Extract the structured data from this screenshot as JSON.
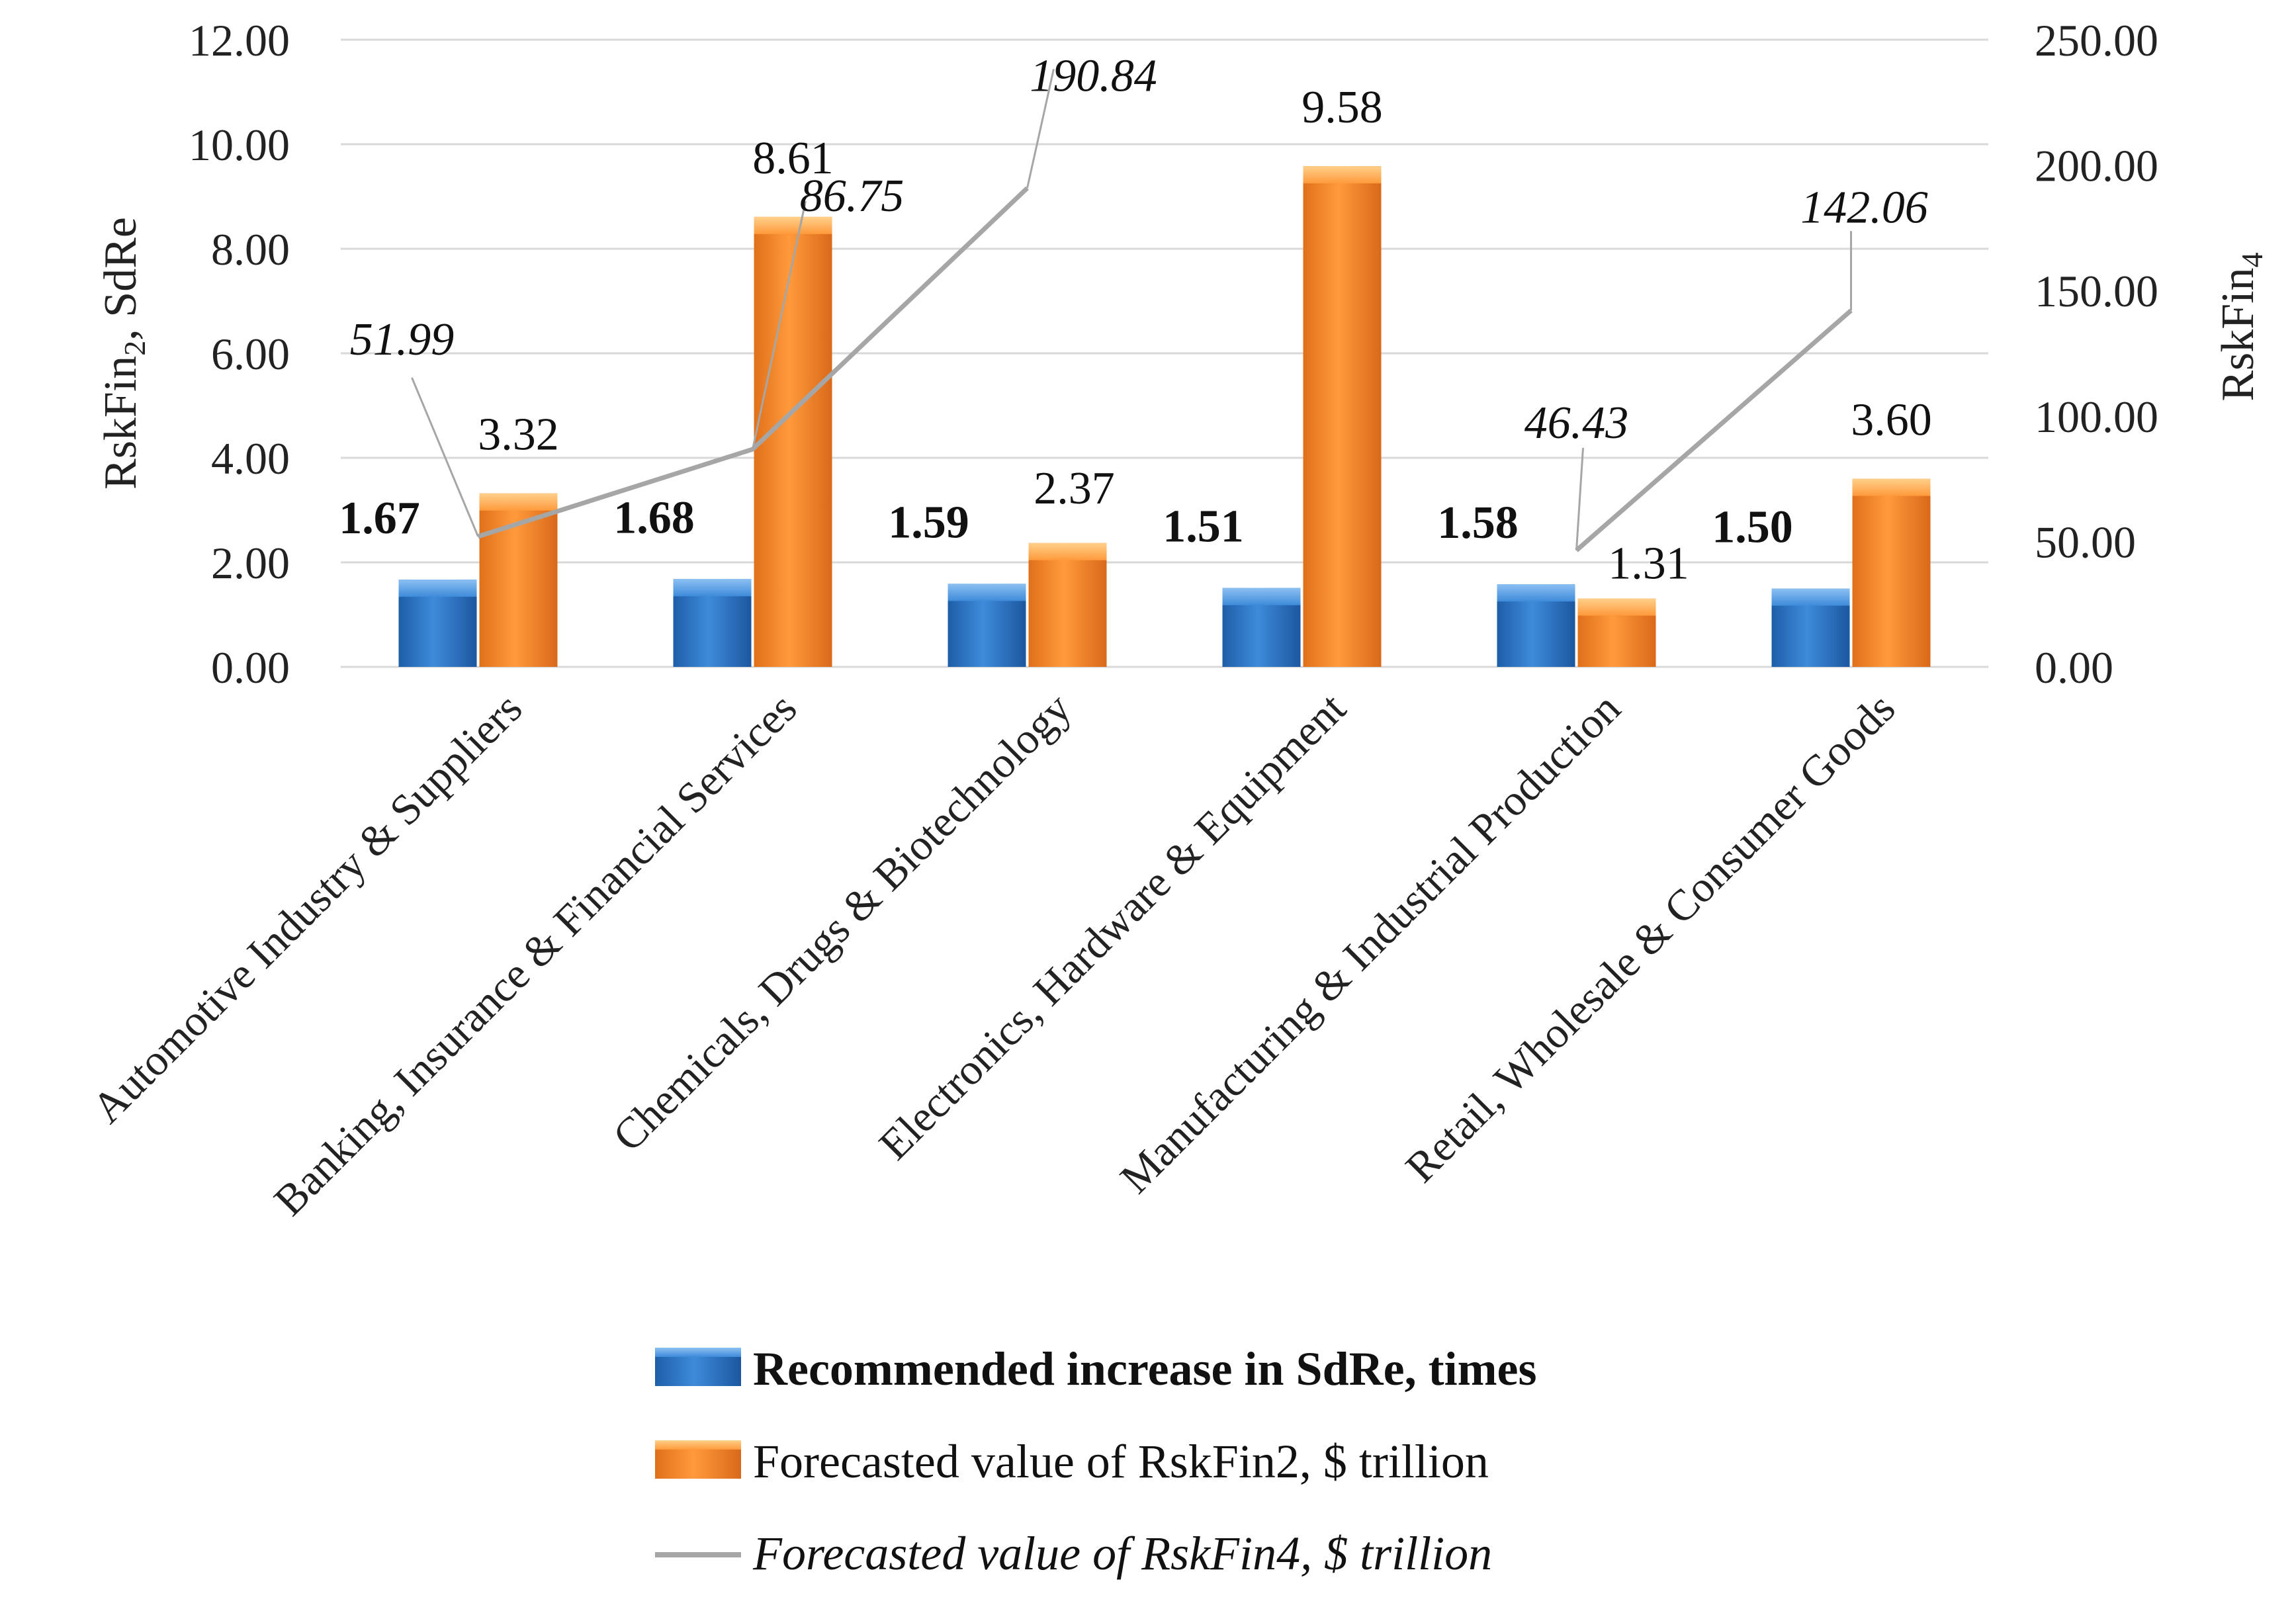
{
  "chart_data": {
    "type": "bar",
    "categories": [
      "Automotive Industry & Suppliers",
      "Banking, Insurance & Financial Services",
      "Chemicals, Drugs & Biotechnology",
      "Electronics, Hardware & Equipment",
      "Manufacturing & Industrial Production",
      "Retail, Wholesale & Consumer Goods"
    ],
    "series": [
      {
        "name": "Recommended increase in SdRe, times",
        "kind": "bar",
        "axis": "left",
        "color": "#2E75C8",
        "values": [
          1.67,
          1.68,
          1.59,
          1.51,
          1.58,
          1.5
        ],
        "labels": [
          "1.67",
          "1.68",
          "1.59",
          "1.51",
          "1.58",
          "1.50"
        ]
      },
      {
        "name": "Forecasted value of RskFin2, $ trillion",
        "kind": "bar",
        "axis": "left",
        "color": "#F28A2E",
        "values": [
          3.32,
          8.61,
          2.37,
          9.58,
          1.31,
          3.6
        ],
        "labels": [
          "3.32",
          "8.61",
          "2.37",
          "9.58",
          "1.31",
          "3.60"
        ]
      },
      {
        "name": "Forecasted value of RskFin4, $ trillion",
        "kind": "line",
        "axis": "right",
        "color": "#A6A6A6",
        "segments": [
          [
            0,
            1,
            2
          ],
          [
            4,
            5
          ]
        ],
        "points": [
          {
            "cat": 0,
            "value": 51.99,
            "label": "51.99"
          },
          {
            "cat": 1,
            "value": 86.75,
            "label": "86.75"
          },
          {
            "cat": 2,
            "value": 190.84,
            "label": "190.84"
          },
          {
            "cat": 4,
            "value": 46.43,
            "label": "46.43"
          },
          {
            "cat": 5,
            "value": 142.06,
            "label": "142.06"
          }
        ]
      }
    ],
    "left_axis": {
      "label_main": "RskFin",
      "label_sub": "2",
      "label_rest": ", SdRe",
      "ylim": [
        0,
        12
      ],
      "ticks": [
        "0.00",
        "2.00",
        "4.00",
        "6.00",
        "8.00",
        "10.00",
        "12.00"
      ]
    },
    "right_axis": {
      "label_main": "RskFin",
      "label_sub": "4",
      "ylim": [
        0,
        250
      ],
      "ticks": [
        "0.00",
        "50.00",
        "100.00",
        "150.00",
        "200.00",
        "250.00"
      ]
    },
    "gridlines": true,
    "legend_position": "bottom"
  }
}
